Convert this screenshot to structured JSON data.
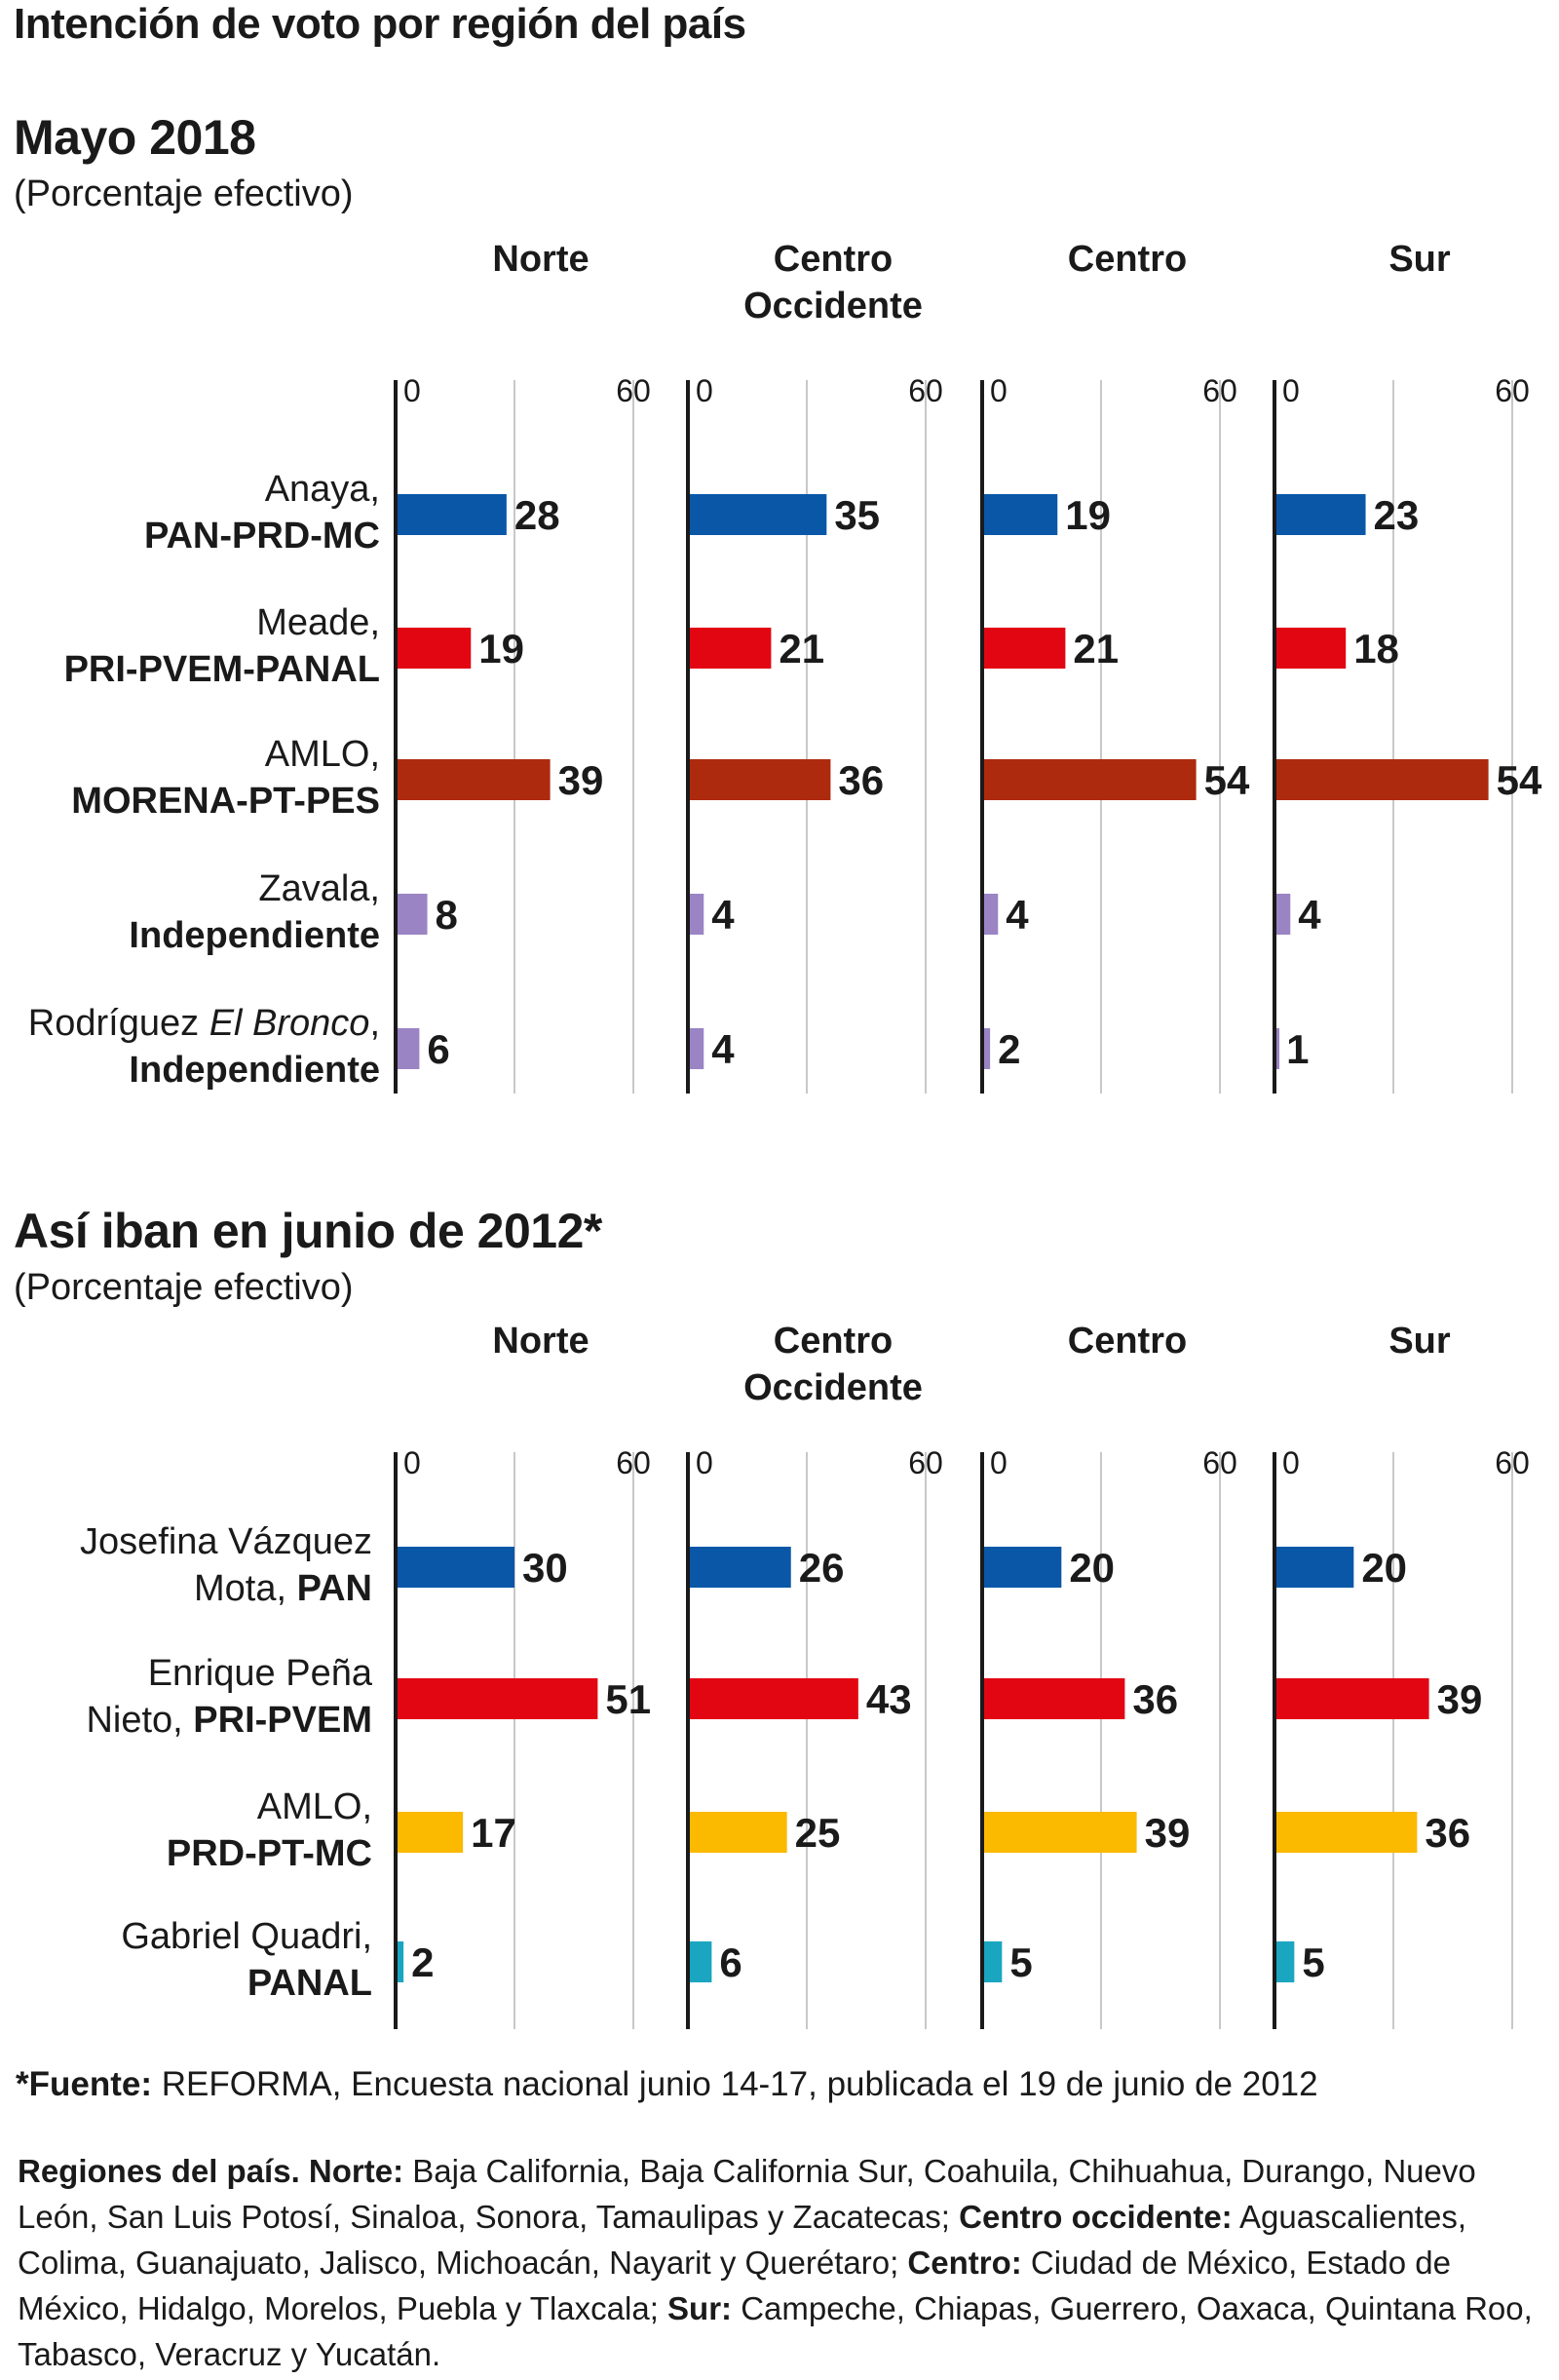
{
  "main_title": "Intención de voto por región del país",
  "sections": [
    {
      "title": "Mayo 2018",
      "subtitle": "(Porcentaje efectivo)"
    },
    {
      "title": "Así iban en junio de 2012*",
      "subtitle": "(Porcentaje efectivo)"
    }
  ],
  "chart_data": [
    {
      "type": "bar",
      "orientation": "horizontal",
      "title": "Mayo 2018",
      "subtitle": "(Porcentaje efectivo)",
      "xlim": [
        0,
        60
      ],
      "tick_labels": [
        "0",
        "60"
      ],
      "grid": true,
      "panels": [
        "Norte",
        "Centro\nOccidente",
        "Centro",
        "Sur"
      ],
      "categories": [
        {
          "line1": "Anaya,",
          "line2": "PAN-PRD-MC",
          "italic": "",
          "color": "#0a57a8"
        },
        {
          "line1": "Meade,",
          "line2": "PRI-PVEM-PANAL",
          "italic": "",
          "color": "#e20613"
        },
        {
          "line1": "AMLO,",
          "line2": "MORENA-PT-PES",
          "italic": "",
          "color": "#ae2a0e"
        },
        {
          "line1": "Zavala,",
          "line2": "Independiente",
          "italic": "",
          "color": "#9a84c4"
        },
        {
          "line1": "Rodríguez ",
          "italic": "El Bronco",
          "line1_end": ",",
          "line2": "Independiente",
          "color": "#9a84c4"
        }
      ],
      "values": [
        [
          28,
          35,
          19,
          23
        ],
        [
          19,
          21,
          21,
          18
        ],
        [
          39,
          36,
          54,
          54
        ],
        [
          8,
          4,
          4,
          4
        ],
        [
          6,
          4,
          2,
          1
        ]
      ]
    },
    {
      "type": "bar",
      "orientation": "horizontal",
      "title": "Así iban en junio de 2012*",
      "subtitle": "(Porcentaje efectivo)",
      "xlim": [
        0,
        60
      ],
      "tick_labels": [
        "0",
        "60"
      ],
      "grid": true,
      "panels": [
        "Norte",
        "Centro\nOccidente",
        "Centro",
        "Sur"
      ],
      "categories": [
        {
          "line1": "Josefina Vázquez",
          "line2a": "Mota, ",
          "line2b": "PAN",
          "color": "#0a57a8"
        },
        {
          "line1": "Enrique Peña",
          "line2a": "Nieto, ",
          "line2b": "PRI-PVEM",
          "color": "#e20613"
        },
        {
          "line1": "AMLO,",
          "line2a": "",
          "line2b": "PRD-PT-MC",
          "color": "#fbb900"
        },
        {
          "line1": "Gabriel Quadri,",
          "line2a": "",
          "line2b": "PANAL",
          "color": "#1aa6c0"
        }
      ],
      "values": [
        [
          30,
          26,
          20,
          20
        ],
        [
          51,
          43,
          36,
          39
        ],
        [
          17,
          25,
          39,
          36
        ],
        [
          2,
          6,
          5,
          5
        ]
      ]
    }
  ],
  "footnote": {
    "label": "*Fuente:",
    "text": " REFORMA, Encuesta nacional junio 14-17, publicada el 19 de junio de 2012"
  },
  "regions": {
    "label": "Regiones del país.",
    "norte_label": " Norte:",
    "norte_text": " Baja California, Baja California Sur, Coahuila, Chihuahua, Durango, Nuevo León, San Luis Potosí, Sinaloa, Sonora, Tamaulipas y Zacatecas;",
    "co_label": " Centro occidente:",
    "co_text": " Aguascalientes, Colima, Guanajuato, Jalisco, Michoacán, Nayarit y Querétaro;",
    "centro_label": " Centro:",
    "centro_text": " Ciudad de México, Estado de México, Hidalgo, Morelos, Puebla y Tlaxcala;",
    "sur_label": " Sur:",
    "sur_text": " Campeche, Chiapas, Guerrero, Oaxaca, Quintana Roo, Tabasco, Veracruz y Yucatán."
  }
}
